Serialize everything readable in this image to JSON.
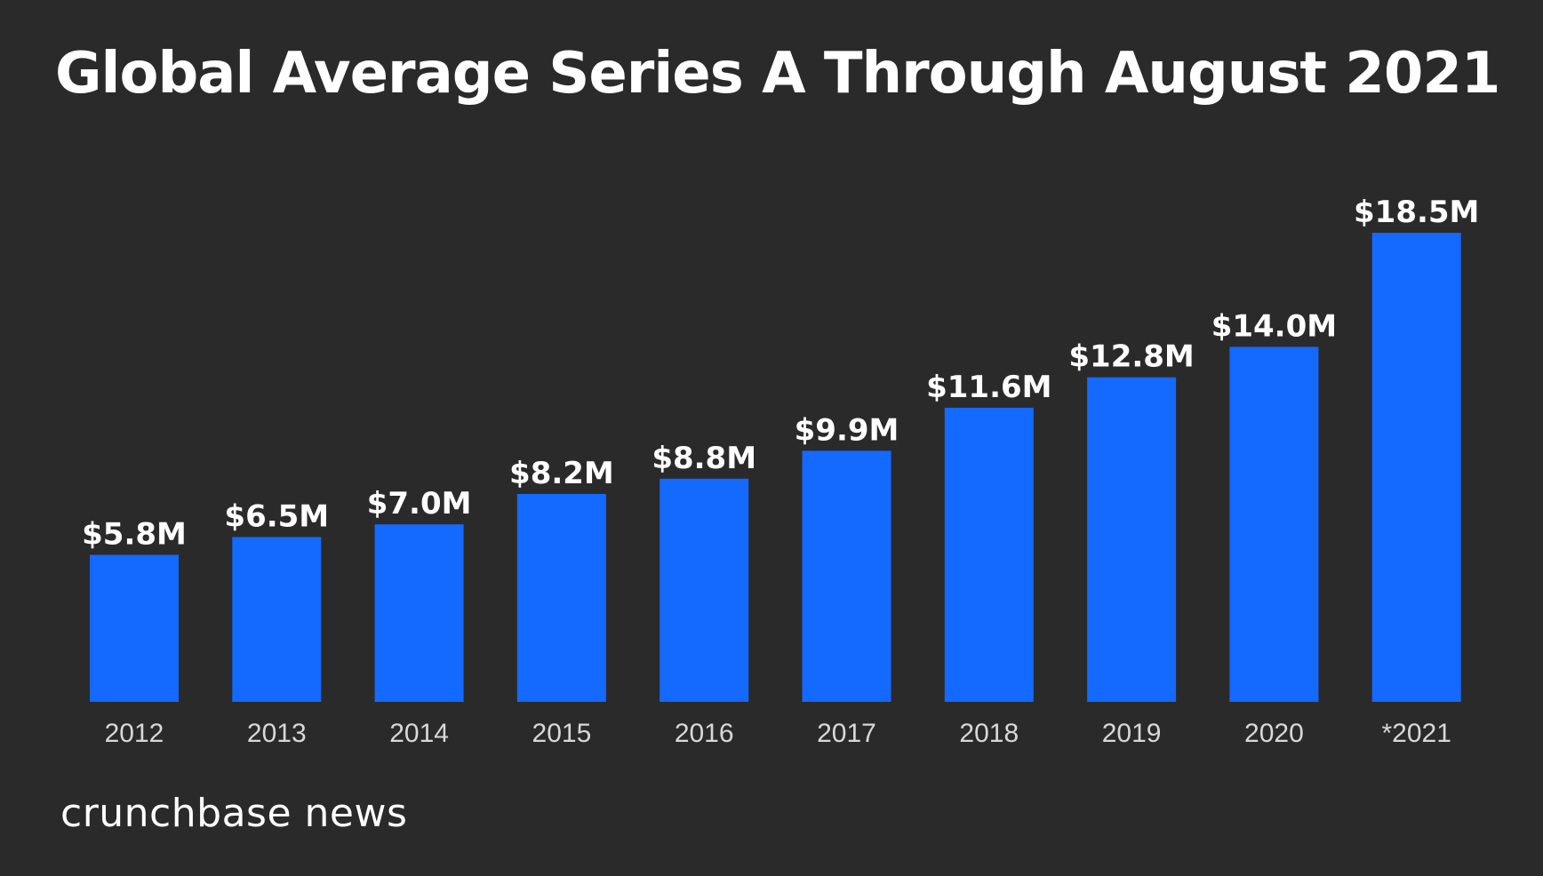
{
  "chart_data": {
    "type": "bar",
    "title": "Global Average Series A Through August 2021",
    "categories": [
      "2012",
      "2013",
      "2014",
      "2015",
      "2016",
      "2017",
      "2018",
      "2019",
      "2020",
      "*2021"
    ],
    "values": [
      5.8,
      6.5,
      7.0,
      8.2,
      8.8,
      9.9,
      11.6,
      12.8,
      14.0,
      18.5
    ],
    "value_labels": [
      "$5.8M",
      "$6.5M",
      "$7.0M",
      "$8.2M",
      "$8.8M",
      "$9.9M",
      "$11.6M",
      "$12.8M",
      "$14.0M",
      "$18.5M"
    ],
    "xlabel": "",
    "ylabel": "",
    "ylim": [
      0,
      18.5
    ],
    "grid": false,
    "legend": "none",
    "bar_color": "#1469ff",
    "background_color": "#2a2a2a"
  },
  "branding": {
    "text": "crunchbase news"
  }
}
